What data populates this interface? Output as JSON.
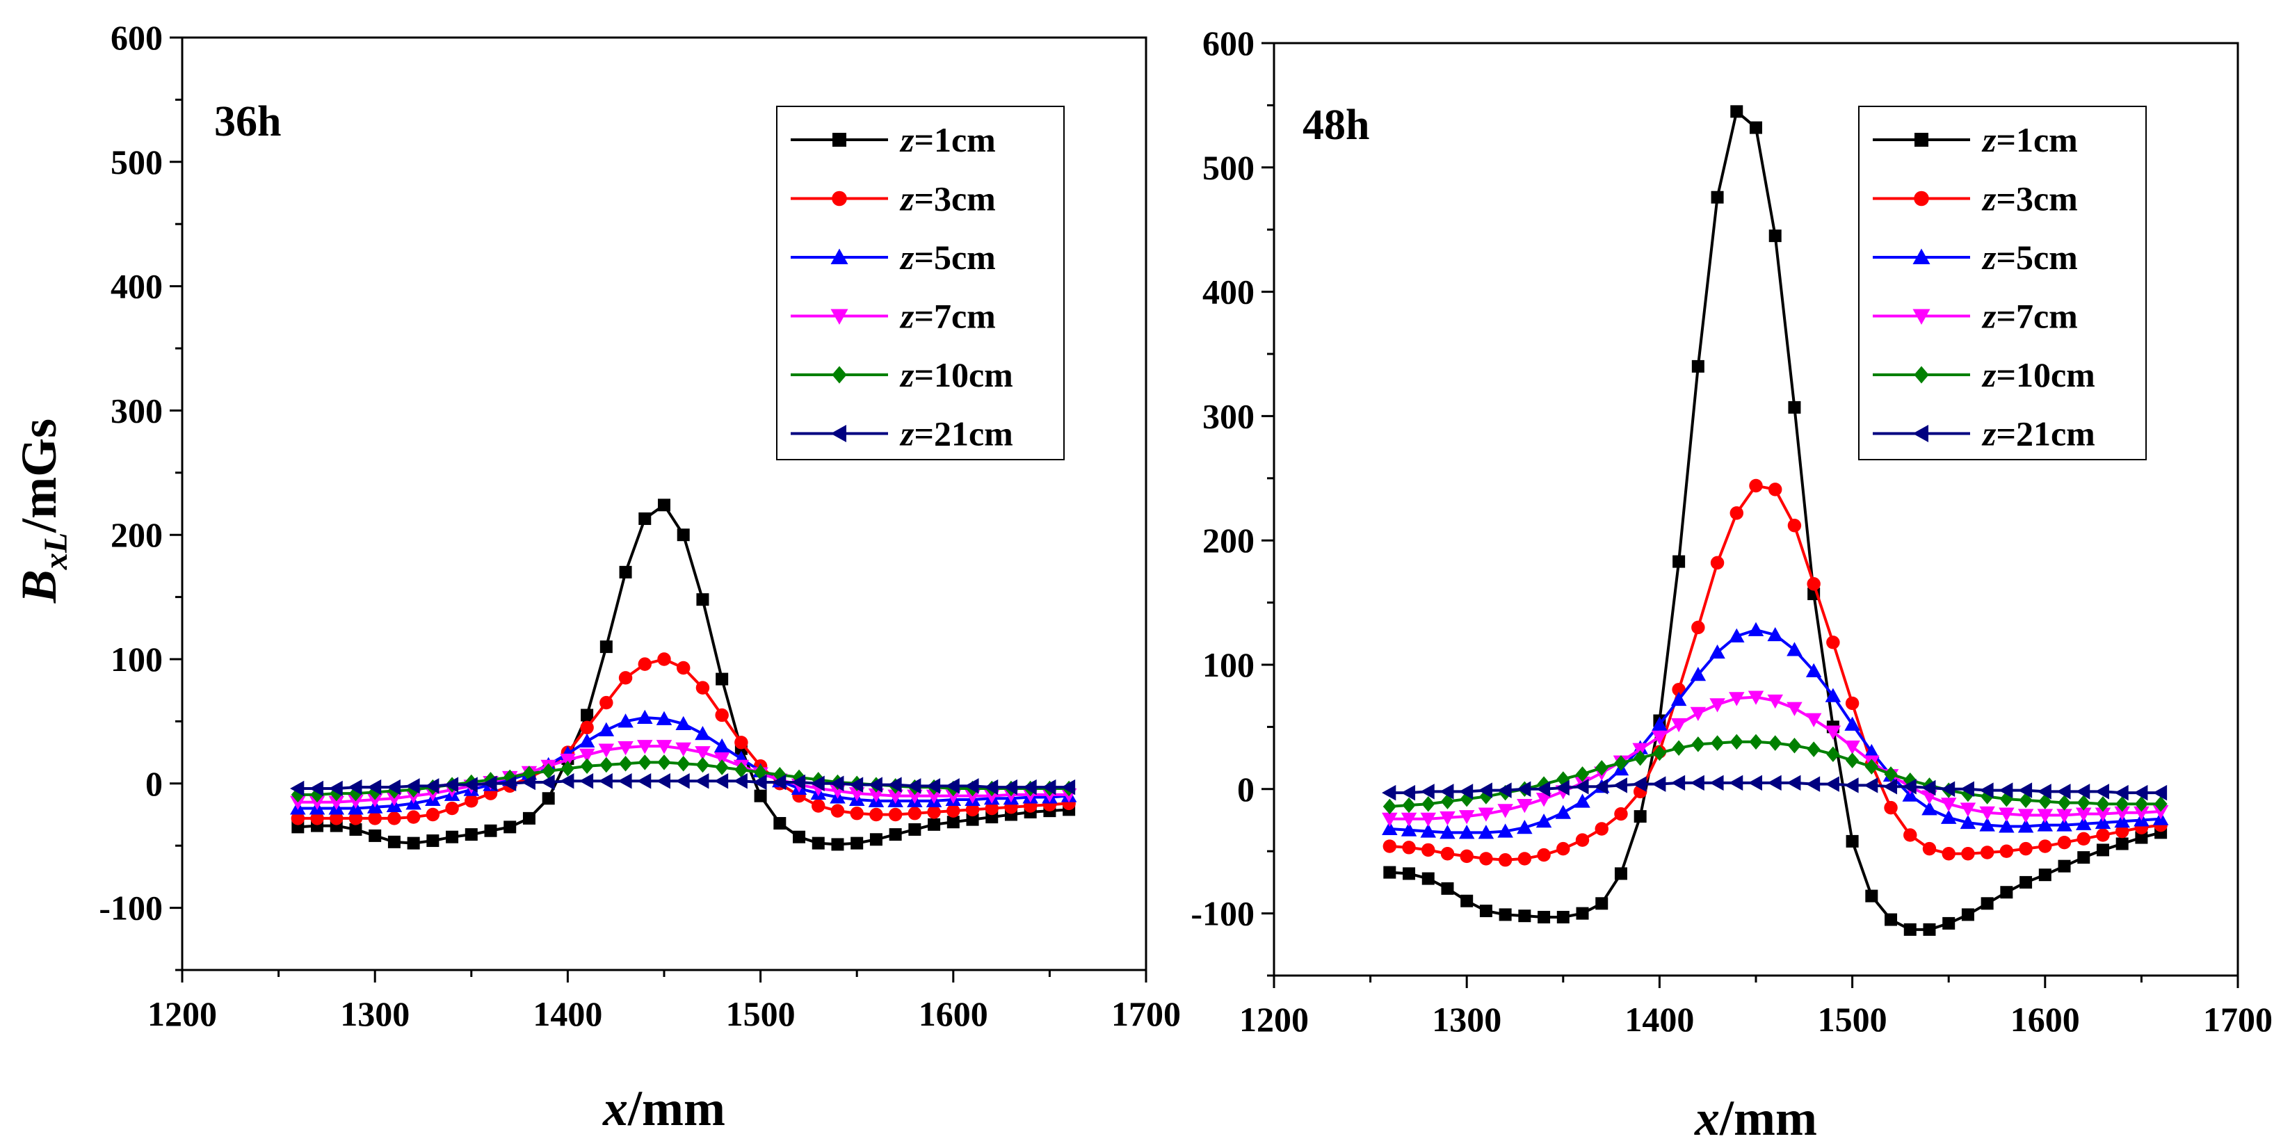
{
  "chart_data": [
    {
      "type": "line",
      "panel_label": "36h",
      "xlabel_var": "x",
      "xlabel_unit": "/mm",
      "ylabel_var": "B",
      "ylabel_sub": "xL",
      "ylabel_unit": "/mGs",
      "xlim": [
        1200,
        1700
      ],
      "ylim": [
        -150,
        600
      ],
      "xticks": [
        1200,
        1300,
        1400,
        1500,
        1600,
        1700
      ],
      "yticks": [
        -100,
        0,
        100,
        200,
        300,
        400,
        500,
        600
      ],
      "grid": false,
      "legend_position": "top-right",
      "x": [
        1260,
        1270,
        1280,
        1290,
        1300,
        1310,
        1320,
        1330,
        1340,
        1350,
        1360,
        1370,
        1380,
        1390,
        1400,
        1410,
        1420,
        1430,
        1440,
        1450,
        1460,
        1470,
        1480,
        1490,
        1500,
        1510,
        1520,
        1530,
        1540,
        1550,
        1560,
        1570,
        1580,
        1590,
        1600,
        1610,
        1620,
        1630,
        1640,
        1650,
        1660
      ],
      "series": [
        {
          "name_var": "z",
          "name_rest": "=1cm",
          "color": "#000000",
          "marker": "square",
          "values": [
            -35,
            -34,
            -34,
            -37,
            -42,
            -47,
            -48,
            -46,
            -43,
            -41,
            -38,
            -35,
            -28,
            -12,
            20,
            55,
            110,
            170,
            213,
            224,
            200,
            148,
            84,
            28,
            -10,
            -32,
            -43,
            -48,
            -49,
            -48,
            -45,
            -41,
            -37,
            -33,
            -31,
            -29,
            -27,
            -25,
            -23,
            -22,
            -21
          ]
        },
        {
          "name_var": "z",
          "name_rest": "=3cm",
          "color": "#ff0000",
          "marker": "circle",
          "values": [
            -28,
            -28,
            -28,
            -28,
            -28,
            -28,
            -27,
            -25,
            -20,
            -14,
            -8,
            -2,
            5,
            12,
            25,
            45,
            65,
            85,
            96,
            100,
            93,
            77,
            55,
            33,
            14,
            0,
            -10,
            -18,
            -22,
            -24,
            -25,
            -25,
            -24,
            -23,
            -22,
            -21,
            -20,
            -19,
            -18,
            -17,
            -16
          ]
        },
        {
          "name_var": "z",
          "name_rest": "=5cm",
          "color": "#0000ff",
          "marker": "triangle-up",
          "values": [
            -20,
            -20,
            -20,
            -20,
            -19,
            -18,
            -16,
            -13,
            -9,
            -5,
            -1,
            3,
            8,
            15,
            24,
            34,
            43,
            50,
            53,
            52,
            48,
            40,
            30,
            20,
            10,
            2,
            -4,
            -8,
            -11,
            -13,
            -14,
            -14,
            -14,
            -14,
            -13,
            -13,
            -12,
            -12,
            -11,
            -11,
            -10
          ]
        },
        {
          "name_var": "z",
          "name_rest": "=7cm",
          "color": "#ff00ff",
          "marker": "triangle-down",
          "values": [
            -15,
            -15,
            -15,
            -14,
            -13,
            -12,
            -10,
            -8,
            -5,
            -2,
            1,
            5,
            9,
            14,
            19,
            23,
            27,
            29,
            30,
            30,
            28,
            25,
            20,
            14,
            8,
            3,
            -1,
            -4,
            -6,
            -8,
            -9,
            -10,
            -10,
            -10,
            -10,
            -10,
            -10,
            -9,
            -9,
            -9,
            -9
          ]
        },
        {
          "name_var": "z",
          "name_rest": "=10cm",
          "color": "#008000",
          "marker": "diamond",
          "values": [
            -9,
            -9,
            -8,
            -8,
            -7,
            -6,
            -5,
            -3,
            -1,
            1,
            3,
            5,
            8,
            10,
            12,
            14,
            15,
            16,
            17,
            17,
            16,
            15,
            13,
            11,
            9,
            7,
            5,
            3,
            1,
            0,
            -1,
            -2,
            -3,
            -3,
            -4,
            -4,
            -4,
            -4,
            -4,
            -4,
            -4
          ]
        },
        {
          "name_var": "z",
          "name_rest": "=21cm",
          "color": "#000080",
          "marker": "triangle-left",
          "values": [
            -4,
            -4,
            -4,
            -3,
            -3,
            -3,
            -2,
            -2,
            -1,
            -1,
            0,
            0,
            1,
            1,
            2,
            2,
            2,
            2,
            2,
            2,
            2,
            2,
            2,
            2,
            1,
            1,
            1,
            0,
            0,
            -1,
            -1,
            -1,
            -2,
            -2,
            -2,
            -2,
            -3,
            -3,
            -3,
            -3,
            -3
          ]
        }
      ]
    },
    {
      "type": "line",
      "panel_label": "48h",
      "xlabel_var": "x",
      "xlabel_unit": "/mm",
      "xlim": [
        1200,
        1700
      ],
      "ylim": [
        -150,
        600
      ],
      "xticks": [
        1200,
        1300,
        1400,
        1500,
        1600,
        1700
      ],
      "yticks": [
        -100,
        0,
        100,
        200,
        300,
        400,
        500,
        600
      ],
      "grid": false,
      "legend_position": "top-right",
      "x": [
        1260,
        1270,
        1280,
        1290,
        1300,
        1310,
        1320,
        1330,
        1340,
        1350,
        1360,
        1370,
        1380,
        1390,
        1400,
        1410,
        1420,
        1430,
        1440,
        1450,
        1460,
        1470,
        1480,
        1490,
        1500,
        1510,
        1520,
        1530,
        1540,
        1550,
        1560,
        1570,
        1580,
        1590,
        1600,
        1610,
        1620,
        1630,
        1640,
        1650,
        1660
      ],
      "series": [
        {
          "name_var": "z",
          "name_rest": "=1cm",
          "color": "#000000",
          "marker": "square",
          "values": [
            -67,
            -68,
            -72,
            -80,
            -90,
            -98,
            -101,
            -102,
            -103,
            -103,
            -100,
            -92,
            -68,
            -22,
            55,
            183,
            340,
            476,
            545,
            532,
            445,
            307,
            157,
            50,
            -42,
            -86,
            -105,
            -113,
            -113,
            -108,
            -101,
            -92,
            -83,
            -75,
            -69,
            -62,
            -55,
            -49,
            -44,
            -39,
            -35
          ]
        },
        {
          "name_var": "z",
          "name_rest": "=3cm",
          "color": "#ff0000",
          "marker": "circle",
          "values": [
            -46,
            -47,
            -49,
            -52,
            -54,
            -56,
            -57,
            -56,
            -53,
            -48,
            -41,
            -32,
            -20,
            -2,
            30,
            80,
            130,
            182,
            222,
            244,
            241,
            212,
            165,
            118,
            69,
            20,
            -15,
            -37,
            -48,
            -52,
            -52,
            -51,
            -50,
            -48,
            -46,
            -43,
            -40,
            -37,
            -34,
            -31,
            -29
          ]
        },
        {
          "name_var": "z",
          "name_rest": "=5cm",
          "color": "#0000ff",
          "marker": "triangle-up",
          "values": [
            -32,
            -33,
            -34,
            -35,
            -35,
            -35,
            -34,
            -31,
            -26,
            -19,
            -10,
            2,
            16,
            33,
            52,
            72,
            92,
            110,
            123,
            128,
            124,
            112,
            95,
            75,
            52,
            30,
            11,
            -5,
            -16,
            -23,
            -27,
            -29,
            -30,
            -30,
            -29,
            -29,
            -28,
            -27,
            -26,
            -25,
            -24
          ]
        },
        {
          "name_var": "z",
          "name_rest": "=7cm",
          "color": "#ff00ff",
          "marker": "triangle-down",
          "values": [
            -24,
            -24,
            -24,
            -23,
            -22,
            -20,
            -17,
            -13,
            -8,
            -2,
            5,
            13,
            22,
            32,
            42,
            52,
            61,
            68,
            73,
            74,
            71,
            65,
            56,
            46,
            34,
            22,
            11,
            2,
            -6,
            -12,
            -16,
            -19,
            -20,
            -21,
            -21,
            -21,
            -20,
            -20,
            -19,
            -19,
            -18
          ]
        },
        {
          "name_var": "z",
          "name_rest": "=10cm",
          "color": "#008000",
          "marker": "diamond",
          "values": [
            -14,
            -13,
            -12,
            -10,
            -8,
            -6,
            -3,
            0,
            4,
            8,
            12,
            17,
            21,
            25,
            29,
            33,
            36,
            37,
            38,
            38,
            37,
            35,
            32,
            28,
            23,
            18,
            12,
            7,
            3,
            -1,
            -4,
            -6,
            -8,
            -9,
            -10,
            -11,
            -11,
            -12,
            -12,
            -12,
            -12
          ]
        },
        {
          "name_var": "z",
          "name_rest": "=21cm",
          "color": "#000080",
          "marker": "triangle-left",
          "values": [
            -3,
            -3,
            -2,
            -2,
            -2,
            -1,
            -1,
            0,
            0,
            1,
            2,
            2,
            3,
            4,
            4,
            5,
            5,
            5,
            5,
            5,
            5,
            5,
            4,
            4,
            3,
            3,
            2,
            2,
            1,
            0,
            0,
            -1,
            -1,
            -1,
            -2,
            -2,
            -2,
            -2,
            -3,
            -3,
            -3
          ]
        }
      ]
    }
  ]
}
